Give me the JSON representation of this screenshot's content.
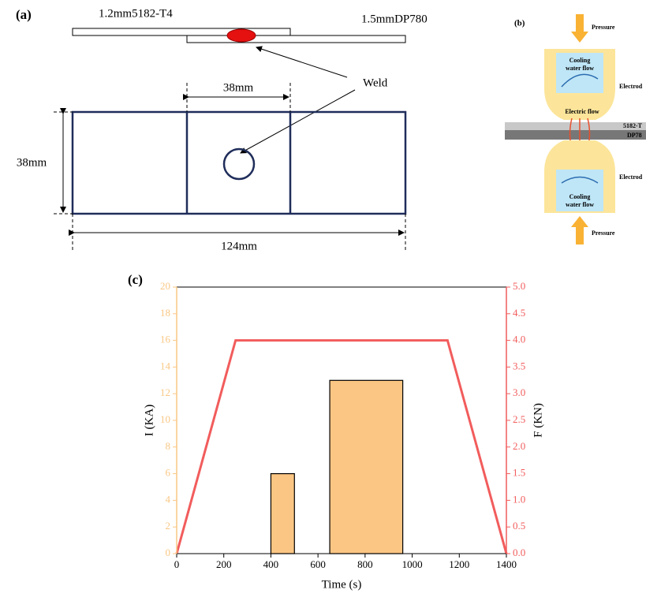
{
  "panel_a": {
    "label": "(a)",
    "top_sheet": "1.2mm5182-T4",
    "bottom_sheet": "1.5mmDP780",
    "weld": "Weld",
    "overlap_width": "38mm",
    "width": "38mm",
    "length": "124mm"
  },
  "panel_b": {
    "label": "(b)",
    "pressure_top": "Pressure",
    "cooling_top_1": "Cooling",
    "cooling_top_2": "water flow",
    "electrode_top": "Electrod",
    "electric_flow": "Electric flow",
    "sheet_top": "5182-T",
    "sheet_bottom": "DP78",
    "electrode_bottom": "Electrod",
    "cooling_bottom_1": "Cooling",
    "cooling_bottom_2": "water flow",
    "pressure_bottom": "Pressure"
  },
  "chart_data": {
    "type": "bar-line",
    "label": "(c)",
    "xlabel": "Time (s)",
    "ylabel": "I (KA)",
    "y2label": "F (KN)",
    "xlim": [
      0,
      1400
    ],
    "xticks": [
      0,
      200,
      400,
      600,
      800,
      1000,
      1200,
      1400
    ],
    "ylim": [
      0,
      20
    ],
    "yticks": [
      0,
      2,
      4,
      6,
      8,
      10,
      12,
      14,
      16,
      18,
      20
    ],
    "y2lim": [
      0,
      5
    ],
    "y2ticks": [
      {
        "value": 0,
        "label": "0.0"
      },
      0.5,
      {
        "value": 1,
        "label": "1.0"
      },
      1.5,
      {
        "value": 2,
        "label": "2.0"
      },
      2.5,
      {
        "value": 3,
        "label": "3.0"
      },
      3.5,
      {
        "value": 4,
        "label": "4.0"
      },
      4.5,
      {
        "value": 5,
        "label": "5.0"
      }
    ],
    "ycolor": "#f9c784",
    "y2color": "#f25c5c",
    "bars": {
      "color": "#fbc683",
      "x_start": [
        400,
        650
      ],
      "x_end": [
        500,
        960
      ],
      "values": [
        6,
        13
      ]
    },
    "line": {
      "color": "#f25c5c",
      "axis": "y2",
      "x": [
        0,
        250,
        1150,
        1400
      ],
      "values": [
        0,
        4,
        4,
        0
      ]
    }
  }
}
